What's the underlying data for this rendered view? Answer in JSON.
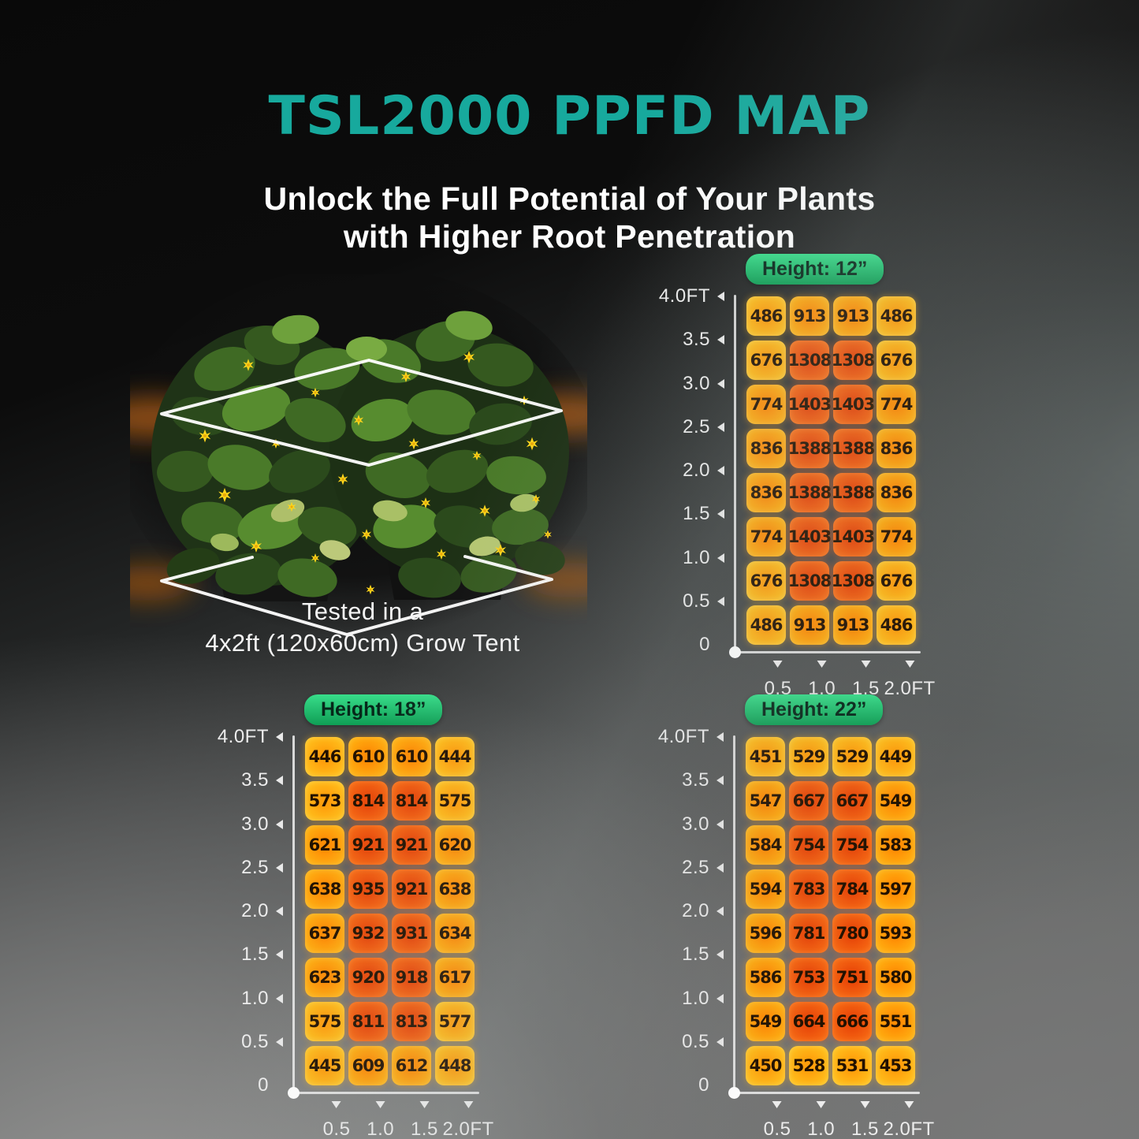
{
  "title": "TSL2000 PPFD MAP",
  "subtitle_line1": "Unlock the Full Potential of Your Plants",
  "subtitle_line2": "with Higher Root Penetration",
  "caption_line1": "Tested in a",
  "caption_line2": "4x2ft (120x60cm) Grow Tent",
  "colors": {
    "title": "#17A99D",
    "subtitle": "#FFFFFF",
    "axis_labels": "#ECECEC",
    "badge_gradient_top": "#38DD8A",
    "badge_gradient_bottom": "#0F9E55",
    "badge_text": "#06281A",
    "cell_text": "#221100",
    "cell_low_center": "#FF9F0C",
    "cell_low_edge": "#FFC61F",
    "cell_mid_center": "#FF8D04",
    "cell_mid_edge": "#FFB714",
    "cell_hot_center": "#EA4A09",
    "cell_hot_edge": "#F97117"
  },
  "axes": {
    "y_ticks": [
      "4.0FT",
      "3.5",
      "3.0",
      "2.5",
      "2.0",
      "1.5",
      "1.0",
      "0.5",
      "0"
    ],
    "x_ticks": [
      "0.5",
      "1.0",
      "1.5",
      "2.0FT"
    ],
    "x_range_ft": [
      0,
      2.0
    ],
    "y_range_ft": [
      0,
      4.0
    ],
    "grid": false
  },
  "chart_data": [
    {
      "type": "heatmap",
      "title": "Height: 12”",
      "xlabel": "",
      "ylabel": "",
      "x_ticks": [
        "0.5",
        "1.0",
        "1.5",
        "2.0FT"
      ],
      "y_ticks": [
        "4.0FT",
        "3.5",
        "3.0",
        "2.5",
        "2.0",
        "1.5",
        "1.0",
        "0.5",
        "0"
      ],
      "values": [
        [
          486,
          913,
          913,
          486
        ],
        [
          676,
          1308,
          1308,
          676
        ],
        [
          774,
          1403,
          1403,
          774
        ],
        [
          836,
          1388,
          1388,
          836
        ],
        [
          836,
          1388,
          1388,
          836
        ],
        [
          774,
          1403,
          1403,
          774
        ],
        [
          676,
          1308,
          1308,
          676
        ],
        [
          486,
          913,
          913,
          486
        ]
      ],
      "heat_thresholds": {
        "mid": 700,
        "hot": 1300
      }
    },
    {
      "type": "heatmap",
      "title": "Height: 18”",
      "xlabel": "",
      "ylabel": "",
      "x_ticks": [
        "0.5",
        "1.0",
        "1.5",
        "2.0FT"
      ],
      "y_ticks": [
        "4.0FT",
        "3.5",
        "3.0",
        "2.5",
        "2.0",
        "1.5",
        "1.0",
        "0.5",
        "0"
      ],
      "values": [
        [
          446,
          610,
          610,
          444
        ],
        [
          573,
          814,
          814,
          575
        ],
        [
          621,
          921,
          921,
          620
        ],
        [
          638,
          935,
          921,
          638
        ],
        [
          637,
          932,
          931,
          634
        ],
        [
          623,
          920,
          918,
          617
        ],
        [
          575,
          811,
          813,
          577
        ],
        [
          445,
          609,
          612,
          448
        ]
      ],
      "heat_thresholds": {
        "mid": 600,
        "hot": 800
      }
    },
    {
      "type": "heatmap",
      "title": "Height: 22”",
      "xlabel": "",
      "ylabel": "",
      "x_ticks": [
        "0.5",
        "1.0",
        "1.5",
        "2.0FT"
      ],
      "y_ticks": [
        "4.0FT",
        "3.5",
        "3.0",
        "2.5",
        "2.0",
        "1.5",
        "1.0",
        "0.5",
        "0"
      ],
      "values": [
        [
          451,
          529,
          529,
          449
        ],
        [
          547,
          667,
          667,
          549
        ],
        [
          584,
          754,
          754,
          583
        ],
        [
          594,
          783,
          784,
          597
        ],
        [
          596,
          781,
          780,
          593
        ],
        [
          586,
          753,
          751,
          580
        ],
        [
          549,
          664,
          666,
          551
        ],
        [
          450,
          528,
          531,
          453
        ]
      ],
      "heat_thresholds": {
        "mid": 540,
        "hot": 660
      }
    }
  ]
}
